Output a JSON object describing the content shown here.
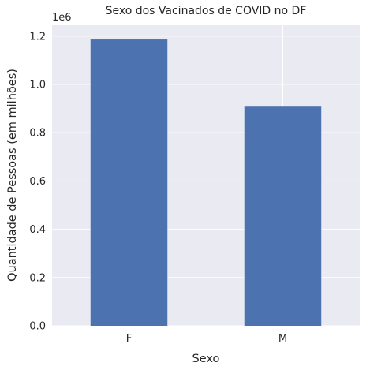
{
  "chart_data": {
    "type": "bar",
    "title": "Sexo dos Vacinados de COVID no DF",
    "xlabel": "Sexo",
    "ylabel": "Quantidade de Pessoas (em milhões)",
    "y_offset_label": "1e6",
    "categories": [
      "F",
      "M"
    ],
    "values": [
      1186000,
      911000
    ],
    "ylim": [
      0,
      1245000
    ],
    "yticks": [
      0,
      200000,
      400000,
      600000,
      800000,
      1000000,
      1200000
    ],
    "ytick_labels": [
      "0.0",
      "0.2",
      "0.4",
      "0.6",
      "0.8",
      "1.0",
      "1.2"
    ],
    "grid": true,
    "legend": "none",
    "colors": {
      "bar": "#4c72b0",
      "plot_background": "#eaeaf2",
      "grid": "#ffffff",
      "text": "#262626"
    }
  }
}
